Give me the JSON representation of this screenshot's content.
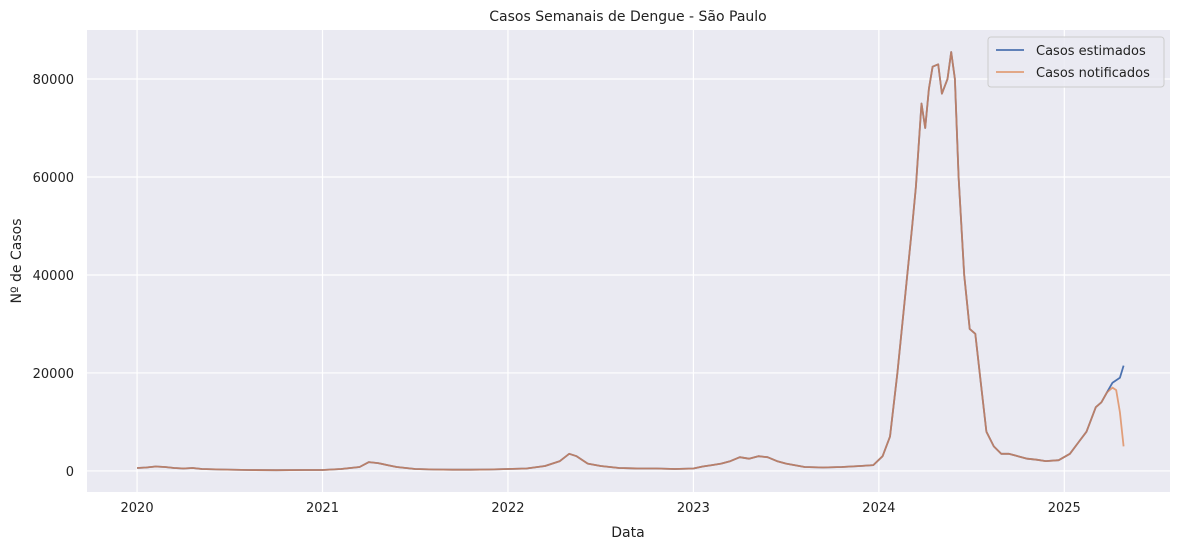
{
  "chart_data": {
    "type": "line",
    "title": "Casos Semanais de Dengue - São Paulo",
    "xlabel": "Data",
    "ylabel": "Nº de Casos",
    "x_ticks": [
      "2020",
      "2021",
      "2022",
      "2023",
      "2024",
      "2025"
    ],
    "y_ticks": [
      "0",
      "20000",
      "40000",
      "60000",
      "80000"
    ],
    "xlim": [
      2019.73,
      2025.57
    ],
    "ylim": [
      -4300,
      90000
    ],
    "grid": true,
    "legend_position": "top-right",
    "series": [
      {
        "name": "Casos estimados",
        "color": "#4c72b0",
        "x": [
          2020.0,
          2020.05,
          2020.1,
          2020.15,
          2020.2,
          2020.25,
          2020.3,
          2020.35,
          2020.45,
          2020.6,
          2020.75,
          2020.9,
          2021.0,
          2021.1,
          2021.2,
          2021.25,
          2021.3,
          2021.35,
          2021.4,
          2021.5,
          2021.6,
          2021.7,
          2021.8,
          2021.9,
          2022.0,
          2022.1,
          2022.2,
          2022.28,
          2022.33,
          2022.37,
          2022.43,
          2022.5,
          2022.6,
          2022.7,
          2022.8,
          2022.9,
          2023.0,
          2023.05,
          2023.1,
          2023.15,
          2023.2,
          2023.25,
          2023.3,
          2023.35,
          2023.4,
          2023.45,
          2023.5,
          2023.6,
          2023.7,
          2023.8,
          2023.9,
          2023.97,
          2024.02,
          2024.06,
          2024.1,
          2024.14,
          2024.18,
          2024.2,
          2024.23,
          2024.25,
          2024.27,
          2024.29,
          2024.32,
          2024.34,
          2024.37,
          2024.39,
          2024.41,
          2024.43,
          2024.46,
          2024.49,
          2024.52,
          2024.55,
          2024.58,
          2024.62,
          2024.66,
          2024.7,
          2024.75,
          2024.8,
          2024.85,
          2024.9,
          2024.97,
          2025.03,
          2025.08,
          2025.12,
          2025.17,
          2025.2,
          2025.23,
          2025.26,
          2025.3,
          2025.32
        ],
        "values": [
          600,
          700,
          900,
          800,
          600,
          500,
          600,
          400,
          300,
          200,
          150,
          200,
          200,
          400,
          800,
          1800,
          1600,
          1200,
          800,
          400,
          300,
          250,
          250,
          300,
          400,
          500,
          1000,
          2000,
          3500,
          3000,
          1500,
          1000,
          600,
          500,
          500,
          400,
          500,
          900,
          1200,
          1500,
          2000,
          2800,
          2500,
          3000,
          2800,
          2000,
          1500,
          800,
          700,
          800,
          1000,
          1200,
          3000,
          7000,
          20000,
          35000,
          50000,
          58000,
          75000,
          70000,
          78000,
          82500,
          83000,
          77000,
          80000,
          85500,
          80000,
          60000,
          40000,
          29000,
          28000,
          18000,
          8000,
          5000,
          3500,
          3500,
          3000,
          2500,
          2300,
          2000,
          2200,
          3500,
          6000,
          8000,
          13000,
          14000,
          16000,
          18000,
          19000,
          21500
        ]
      },
      {
        "name": "Casos notificados",
        "color": "#dd8452",
        "x": [
          2020.0,
          2020.05,
          2020.1,
          2020.15,
          2020.2,
          2020.25,
          2020.3,
          2020.35,
          2020.45,
          2020.6,
          2020.75,
          2020.9,
          2021.0,
          2021.1,
          2021.2,
          2021.25,
          2021.3,
          2021.35,
          2021.4,
          2021.5,
          2021.6,
          2021.7,
          2021.8,
          2021.9,
          2022.0,
          2022.1,
          2022.2,
          2022.28,
          2022.33,
          2022.37,
          2022.43,
          2022.5,
          2022.6,
          2022.7,
          2022.8,
          2022.9,
          2023.0,
          2023.05,
          2023.1,
          2023.15,
          2023.2,
          2023.25,
          2023.3,
          2023.35,
          2023.4,
          2023.45,
          2023.5,
          2023.6,
          2023.7,
          2023.8,
          2023.9,
          2023.97,
          2024.02,
          2024.06,
          2024.1,
          2024.14,
          2024.18,
          2024.2,
          2024.23,
          2024.25,
          2024.27,
          2024.29,
          2024.32,
          2024.34,
          2024.37,
          2024.39,
          2024.41,
          2024.43,
          2024.46,
          2024.49,
          2024.52,
          2024.55,
          2024.58,
          2024.62,
          2024.66,
          2024.7,
          2024.75,
          2024.8,
          2024.85,
          2024.9,
          2024.97,
          2025.03,
          2025.08,
          2025.12,
          2025.17,
          2025.2,
          2025.23,
          2025.26,
          2025.28,
          2025.3,
          2025.32
        ],
        "values": [
          600,
          700,
          900,
          800,
          600,
          500,
          600,
          400,
          300,
          200,
          150,
          200,
          200,
          400,
          800,
          1800,
          1600,
          1200,
          800,
          400,
          300,
          250,
          250,
          300,
          400,
          500,
          1000,
          2000,
          3500,
          3000,
          1500,
          1000,
          600,
          500,
          500,
          400,
          500,
          900,
          1200,
          1500,
          2000,
          2800,
          2500,
          3000,
          2800,
          2000,
          1500,
          800,
          700,
          800,
          1000,
          1200,
          3000,
          7000,
          20000,
          35000,
          50000,
          58000,
          75000,
          70000,
          78000,
          82500,
          83000,
          77000,
          80000,
          85500,
          80000,
          60000,
          40000,
          29000,
          28000,
          18000,
          8000,
          5000,
          3500,
          3500,
          3000,
          2500,
          2300,
          2000,
          2200,
          3500,
          6000,
          8000,
          13000,
          14000,
          16000,
          17000,
          16500,
          12000,
          5000
        ]
      }
    ]
  }
}
